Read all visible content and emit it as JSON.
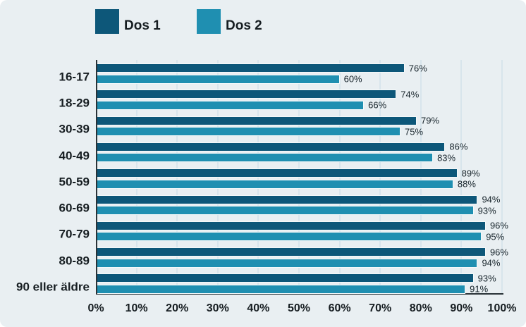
{
  "chart_data": {
    "type": "bar",
    "orientation": "horizontal",
    "categories": [
      "16-17",
      "18-29",
      "30-39",
      "40-49",
      "50-59",
      "60-69",
      "70-79",
      "80-89",
      "90 eller äldre"
    ],
    "series": [
      {
        "name": "Dos 1",
        "color": "#0d5779",
        "values": [
          76,
          74,
          79,
          86,
          89,
          94,
          96,
          96,
          93
        ]
      },
      {
        "name": "Dos 2",
        "color": "#1f8fb1",
        "values": [
          60,
          66,
          75,
          83,
          88,
          93,
          95,
          94,
          91
        ]
      }
    ],
    "value_suffix": "%",
    "xlim": [
      0,
      100
    ],
    "x_ticks": [
      "0%",
      "10%",
      "20%",
      "30%",
      "40%",
      "50%",
      "60%",
      "70%",
      "80%",
      "90%",
      "100%"
    ],
    "grid": true,
    "legend_position": "top-left",
    "data_labels": true
  },
  "colors": {
    "background": "#e9eff2",
    "gridline": "#d8e5ec",
    "axis": "#2a3338",
    "text": "#161d21"
  }
}
